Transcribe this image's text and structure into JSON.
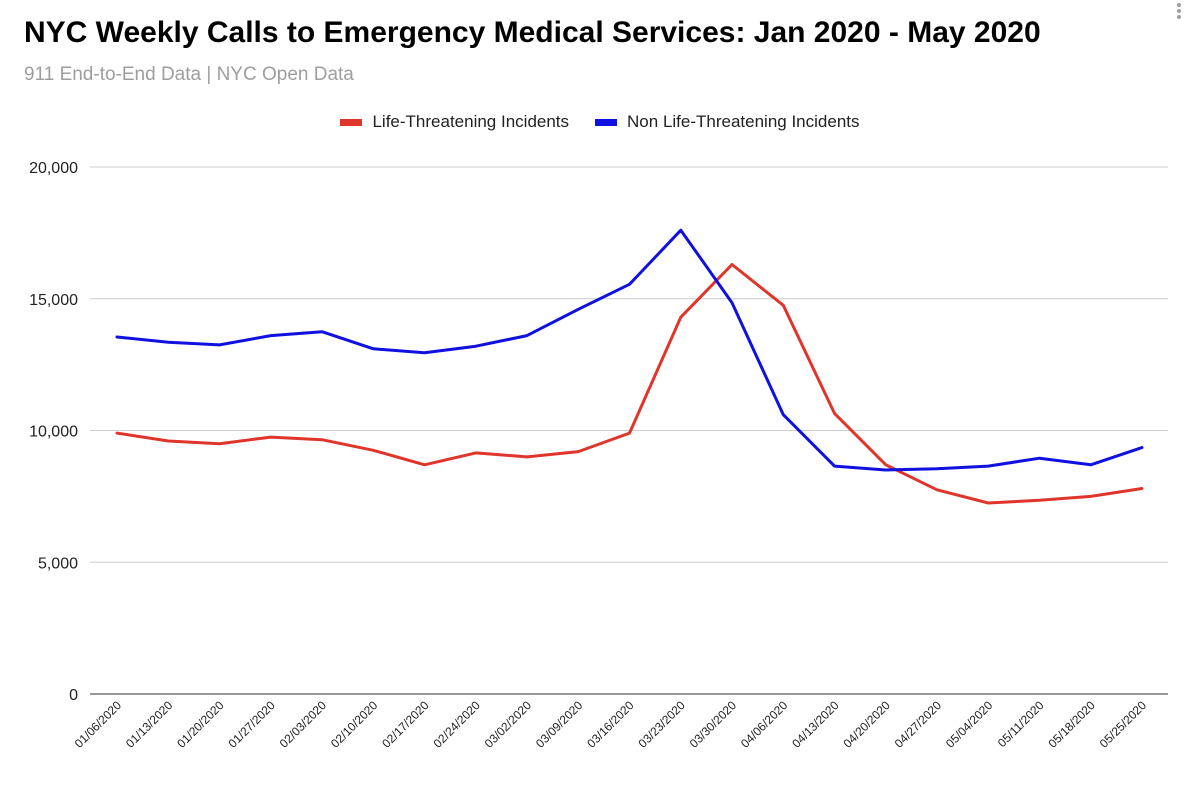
{
  "header": {
    "title": "NYC Weekly Calls to Emergency Medical Services: Jan 2020 - May 2020",
    "subtitle": "911 End-to-End Data | NYC Open Data",
    "menu_icon": "vertical-dots-icon"
  },
  "legend": {
    "items": [
      {
        "label": "Life-Threatening Incidents",
        "color": "#e0352b"
      },
      {
        "label": "Non Life-Threatening Incidents",
        "color": "#1010e0"
      }
    ]
  },
  "chart_data": {
    "type": "line",
    "title": "NYC Weekly Calls to Emergency Medical Services: Jan 2020 - May 2020",
    "subtitle": "911 End-to-End Data | NYC Open Data",
    "xlabel": "",
    "ylabel": "",
    "ylim": [
      0,
      20000
    ],
    "yticks": [
      0,
      5000,
      10000,
      15000,
      20000
    ],
    "ytick_labels": [
      "0",
      "5,000",
      "10,000",
      "15,000",
      "20,000"
    ],
    "grid": true,
    "legend_position": "top",
    "categories": [
      "01/06/2020",
      "01/13/2020",
      "01/20/2020",
      "01/27/2020",
      "02/03/2020",
      "02/10/2020",
      "02/17/2020",
      "02/24/2020",
      "03/02/2020",
      "03/09/2020",
      "03/16/2020",
      "03/23/2020",
      "03/30/2020",
      "04/06/2020",
      "04/13/2020",
      "04/20/2020",
      "04/27/2020",
      "05/04/2020",
      "05/11/2020",
      "05/18/2020",
      "05/25/2020"
    ],
    "series": [
      {
        "name": "Life-Threatening Incidents",
        "color": "#e0352b",
        "values": [
          9900,
          9600,
          9500,
          9750,
          9650,
          9250,
          8700,
          9150,
          9000,
          9200,
          9900,
          14300,
          16300,
          14750,
          10650,
          8700,
          7750,
          7250,
          7350,
          7500,
          7800
        ]
      },
      {
        "name": "Non Life-Threatening Incidents",
        "color": "#1010e0",
        "values": [
          13550,
          13350,
          13250,
          13600,
          13750,
          13100,
          12950,
          13200,
          13600,
          14600,
          15550,
          17600,
          14850,
          10600,
          8650,
          8500,
          8550,
          8650,
          8950,
          8700,
          9350
        ]
      }
    ]
  }
}
